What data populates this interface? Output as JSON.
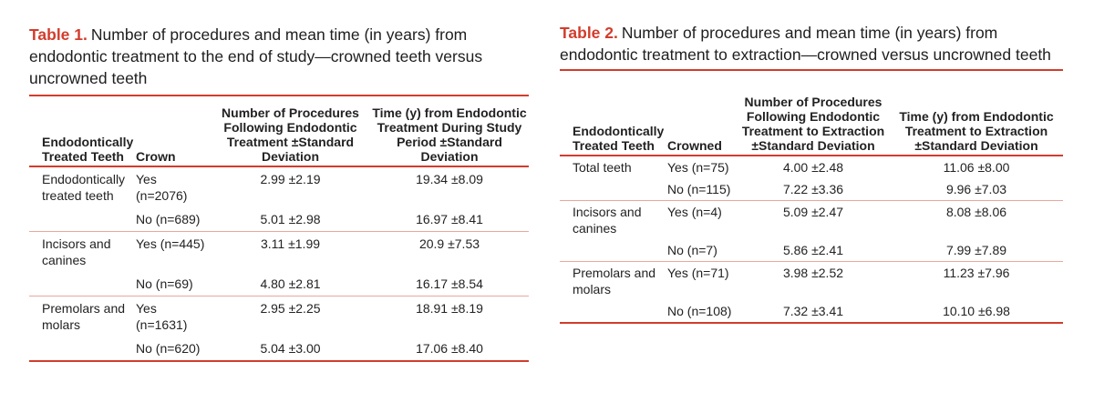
{
  "table1": {
    "label": "Table 1.",
    "title": "Number of procedures and mean time (in years) from endodontic treatment to the end of study—crowned teeth versus uncrowned teeth",
    "headers": [
      "Endodontically Treated Teeth",
      "Crown",
      "Number of Procedures Following Endodontic Treatment ±Standard Deviation",
      "Time (y) from Endodontic Treatment During Study Period ±Standard Deviation"
    ],
    "rows": [
      [
        "Endodontically treated teeth",
        "Yes (n=2076)",
        "2.99 ±2.19",
        "19.34 ±8.09"
      ],
      [
        "",
        "No (n=689)",
        "5.01 ±2.98",
        "16.97 ±8.41"
      ],
      [
        "Incisors and canines",
        "Yes (n=445)",
        "3.11 ±1.99",
        "20.9 ±7.53"
      ],
      [
        "",
        "No (n=69)",
        "4.80 ±2.81",
        "16.17 ±8.54"
      ],
      [
        "Premolars and molars",
        "Yes (n=1631)",
        "2.95 ±2.25",
        "18.91 ±8.19"
      ],
      [
        "",
        "No (n=620)",
        "5.04 ±3.00",
        "17.06 ±8.40"
      ]
    ]
  },
  "table2": {
    "label": "Table 2.",
    "title": "Number of procedures and mean time (in years) from endodontic treatment to extraction—crowned versus uncrowned teeth",
    "headers": [
      "Endodontically Treated Teeth",
      "Crowned",
      "Number of Procedures Following Endodontic Treatment to Extraction ±Standard Deviation",
      "Time (y) from Endodontic Treatment to Extraction ±Standard Deviation"
    ],
    "rows": [
      [
        "Total teeth",
        "Yes (n=75)",
        "4.00 ±2.48",
        "11.06 ±8.00"
      ],
      [
        "",
        "No (n=115)",
        "7.22 ±3.36",
        "9.96 ±7.03"
      ],
      [
        "Incisors and canines",
        "Yes (n=4)",
        "5.09 ±2.47",
        "8.08 ±8.06"
      ],
      [
        "",
        "No (n=7)",
        "5.86 ±2.41",
        "7.99 ±7.89"
      ],
      [
        "Premolars and molars",
        "Yes (n=71)",
        "3.98 ±2.52",
        "11.23 ±7.96"
      ],
      [
        "",
        "No (n=108)",
        "7.32 ±3.41",
        "10.10 ±6.98"
      ]
    ]
  }
}
